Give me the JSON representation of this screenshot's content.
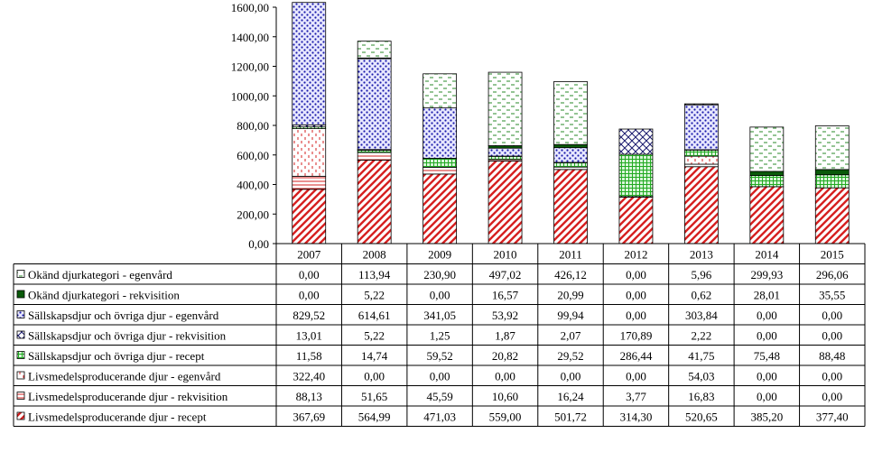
{
  "chart_data": {
    "type": "bar",
    "stacked": true,
    "categories": [
      "2007",
      "2008",
      "2009",
      "2010",
      "2011",
      "2012",
      "2013",
      "2014",
      "2015"
    ],
    "ylim": [
      0,
      1600
    ],
    "yticks": [
      "0,00",
      "200,00",
      "400,00",
      "600,00",
      "800,00",
      "1000,00",
      "1200,00",
      "1400,00",
      "1600,00"
    ],
    "legend_placement": "data table below plot",
    "series": [
      {
        "name": "Livsmedelsproducerande djur - recept",
        "color": "#d62020",
        "pattern": "diag-hatch",
        "values": [
          367.69,
          564.99,
          471.03,
          559.0,
          501.72,
          314.3,
          520.65,
          385.2,
          377.4
        ],
        "labels": [
          "367,69",
          "564,99",
          "471,03",
          "559,00",
          "501,72",
          "314,30",
          "520,65",
          "385,20",
          "377,40"
        ]
      },
      {
        "name": "Livsmedelsproducerande djur - rekvisition",
        "color": "#d62020",
        "pattern": "horizontal-lines",
        "values": [
          88.13,
          51.65,
          45.59,
          10.6,
          16.24,
          3.77,
          16.83,
          0.0,
          0.0
        ],
        "labels": [
          "88,13",
          "51,65",
          "45,59",
          "10,60",
          "16,24",
          "3,77",
          "16,83",
          "0,00",
          "0,00"
        ]
      },
      {
        "name": "Livsmedelsproducerande djur - egenvård",
        "color": "#d62020",
        "pattern": "vertical-dashes",
        "values": [
          322.4,
          0.0,
          0.0,
          0.0,
          0.0,
          0.0,
          54.03,
          0.0,
          0.0
        ],
        "labels": [
          "322,40",
          "0,00",
          "0,00",
          "0,00",
          "0,00",
          "0,00",
          "54,03",
          "0,00",
          "0,00"
        ]
      },
      {
        "name": "Sällskapsdjur och övriga djur - recept",
        "color": "#22aa22",
        "pattern": "grid",
        "values": [
          11.58,
          14.74,
          59.52,
          20.82,
          29.52,
          286.44,
          41.75,
          75.48,
          88.48
        ],
        "labels": [
          "11,58",
          "14,74",
          "59,52",
          "20,82",
          "29,52",
          "286,44",
          "41,75",
          "75,48",
          "88,48"
        ]
      },
      {
        "name": "Sällskapsdjur och övriga djur - rekvisition",
        "color": "#1a1a6e",
        "pattern": "crosshatch",
        "values": [
          13.01,
          5.22,
          1.25,
          1.87,
          2.07,
          170.89,
          2.22,
          0.0,
          0.0
        ],
        "labels": [
          "13,01",
          "5,22",
          "1,25",
          "1,87",
          "2,07",
          "170,89",
          "2,22",
          "0,00",
          "0,00"
        ]
      },
      {
        "name": "Sällskapsdjur och övriga djur - egenvård",
        "color": "#1a1aaa",
        "pattern": "dots",
        "values": [
          829.52,
          614.61,
          341.05,
          53.92,
          99.94,
          0.0,
          303.84,
          0.0,
          0.0
        ],
        "labels": [
          "829,52",
          "614,61",
          "341,05",
          "53,92",
          "99,94",
          "0,00",
          "303,84",
          "0,00",
          "0,00"
        ]
      },
      {
        "name": "Okänd djurkategori - rekvisition",
        "color": "#0a5a0a",
        "pattern": "solid",
        "values": [
          0.0,
          5.22,
          0.0,
          16.57,
          20.99,
          0.0,
          0.62,
          28.01,
          35.55
        ],
        "labels": [
          "0,00",
          "5,22",
          "0,00",
          "16,57",
          "20,99",
          "0,00",
          "0,62",
          "28,01",
          "35,55"
        ]
      },
      {
        "name": "Okänd djurkategori - egenvård",
        "color": "#2a8a2a",
        "pattern": "horizontal-dashes",
        "values": [
          0.0,
          113.94,
          230.9,
          497.02,
          426.12,
          0.0,
          5.96,
          299.93,
          296.06
        ],
        "labels": [
          "0,00",
          "113,94",
          "230,90",
          "497,02",
          "426,12",
          "0,00",
          "5,96",
          "299,93",
          "296,06"
        ]
      }
    ]
  }
}
